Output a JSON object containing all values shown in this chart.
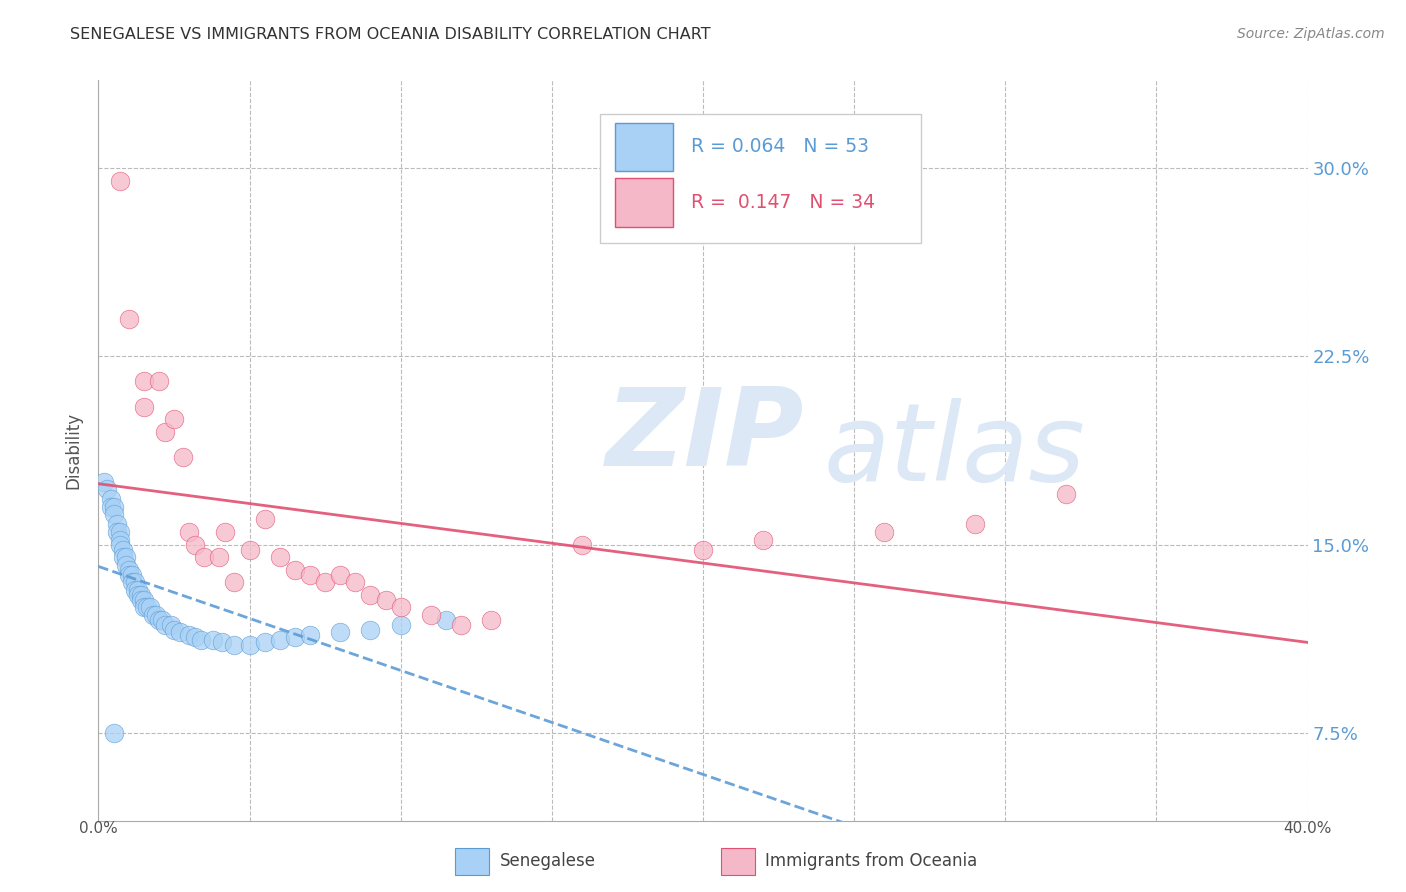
{
  "title": "SENEGALESE VS IMMIGRANTS FROM OCEANIA DISABILITY CORRELATION CHART",
  "source": "Source: ZipAtlas.com",
  "ylabel": "Disability",
  "yticks": [
    0.075,
    0.15,
    0.225,
    0.3
  ],
  "ytick_labels": [
    "7.5%",
    "15.0%",
    "22.5%",
    "30.0%"
  ],
  "xlim": [
    0.0,
    0.4
  ],
  "ylim": [
    0.04,
    0.335
  ],
  "r_senegalese": 0.064,
  "n_senegalese": 53,
  "r_oceania": 0.147,
  "n_oceania": 34,
  "senegalese_color": "#A8D1F5",
  "oceania_color": "#F5B8C8",
  "trend_senegalese_color": "#5B9BD5",
  "trend_oceania_color": "#E05070",
  "legend_label_1": "Senegalese",
  "legend_label_2": "Immigrants from Oceania",
  "senegalese_x": [
    0.002,
    0.003,
    0.004,
    0.004,
    0.005,
    0.005,
    0.006,
    0.006,
    0.007,
    0.007,
    0.007,
    0.008,
    0.008,
    0.009,
    0.009,
    0.01,
    0.01,
    0.011,
    0.011,
    0.012,
    0.012,
    0.013,
    0.013,
    0.014,
    0.014,
    0.015,
    0.015,
    0.016,
    0.017,
    0.018,
    0.019,
    0.02,
    0.021,
    0.022,
    0.024,
    0.025,
    0.027,
    0.03,
    0.032,
    0.034,
    0.038,
    0.041,
    0.045,
    0.05,
    0.055,
    0.06,
    0.065,
    0.07,
    0.08,
    0.09,
    0.1,
    0.115,
    0.005
  ],
  "senegalese_y": [
    0.175,
    0.172,
    0.168,
    0.165,
    0.165,
    0.162,
    0.158,
    0.155,
    0.155,
    0.152,
    0.15,
    0.148,
    0.145,
    0.145,
    0.142,
    0.14,
    0.138,
    0.138,
    0.135,
    0.135,
    0.132,
    0.132,
    0.13,
    0.13,
    0.128,
    0.128,
    0.125,
    0.125,
    0.125,
    0.122,
    0.122,
    0.12,
    0.12,
    0.118,
    0.118,
    0.116,
    0.115,
    0.114,
    0.113,
    0.112,
    0.112,
    0.111,
    0.11,
    0.11,
    0.111,
    0.112,
    0.113,
    0.114,
    0.115,
    0.116,
    0.118,
    0.12,
    0.075
  ],
  "oceania_x": [
    0.007,
    0.01,
    0.015,
    0.015,
    0.02,
    0.022,
    0.025,
    0.028,
    0.03,
    0.032,
    0.035,
    0.04,
    0.042,
    0.045,
    0.05,
    0.055,
    0.06,
    0.065,
    0.07,
    0.075,
    0.08,
    0.085,
    0.09,
    0.095,
    0.1,
    0.11,
    0.12,
    0.13,
    0.16,
    0.2,
    0.22,
    0.26,
    0.29,
    0.32
  ],
  "oceania_y": [
    0.295,
    0.24,
    0.215,
    0.205,
    0.215,
    0.195,
    0.2,
    0.185,
    0.155,
    0.15,
    0.145,
    0.145,
    0.155,
    0.135,
    0.148,
    0.16,
    0.145,
    0.14,
    0.138,
    0.135,
    0.138,
    0.135,
    0.13,
    0.128,
    0.125,
    0.122,
    0.118,
    0.12,
    0.15,
    0.148,
    0.152,
    0.155,
    0.158,
    0.17
  ]
}
